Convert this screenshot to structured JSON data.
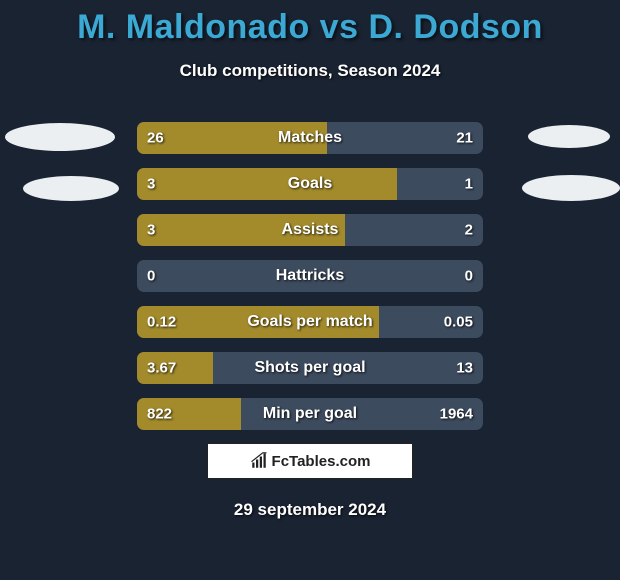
{
  "title_left": "M. Maldonado",
  "title_vs": " vs ",
  "title_right": "D. Dodson",
  "subtitle": "Club competitions, Season 2024",
  "colors": {
    "title": "#3ba9d4",
    "background": "#1a2332",
    "bar_bg": "#3d4b5f",
    "bar_fill": "#a38b2c",
    "ellipse": "#eceff1",
    "brand_bg": "#ffffff",
    "brand_text": "#222222"
  },
  "typography": {
    "title_fontsize": 34,
    "subtitle_fontsize": 17,
    "bar_label_fontsize": 16,
    "bar_value_fontsize": 15,
    "date_fontsize": 17
  },
  "bars": [
    {
      "label": "Matches",
      "left": "26",
      "right": "21",
      "left_pct": 55,
      "right_pct": 0
    },
    {
      "label": "Goals",
      "left": "3",
      "right": "1",
      "left_pct": 75,
      "right_pct": 0
    },
    {
      "label": "Assists",
      "left": "3",
      "right": "2",
      "left_pct": 60,
      "right_pct": 0
    },
    {
      "label": "Hattricks",
      "left": "0",
      "right": "0",
      "left_pct": 0,
      "right_pct": 0
    },
    {
      "label": "Goals per match",
      "left": "0.12",
      "right": "0.05",
      "left_pct": 70,
      "right_pct": 0
    },
    {
      "label": "Shots per goal",
      "left": "3.67",
      "right": "13",
      "left_pct": 22,
      "right_pct": 0
    },
    {
      "label": "Min per goal",
      "left": "822",
      "right": "1964",
      "left_pct": 30,
      "right_pct": 0
    }
  ],
  "brand": "FcTables.com",
  "date": "29 september 2024"
}
